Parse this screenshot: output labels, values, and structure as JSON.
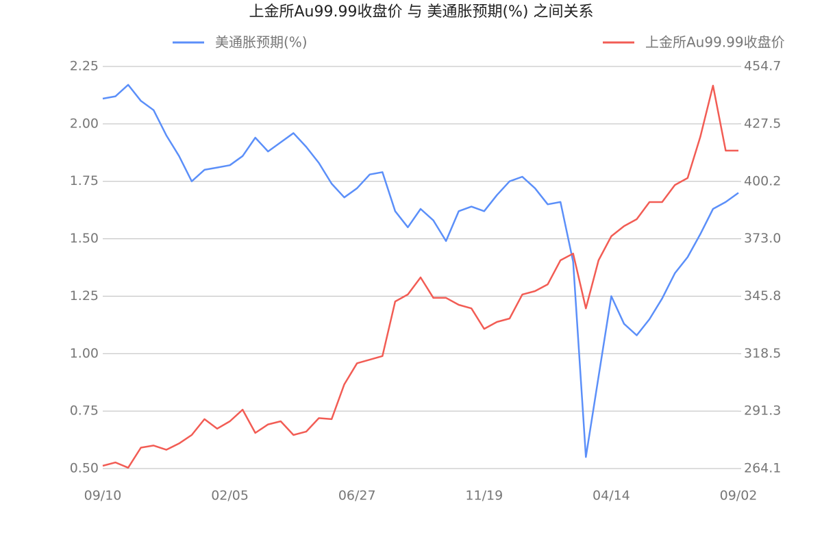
{
  "chart_data": {
    "type": "line",
    "title": "上金所Au99.99收盘价 与 美通胀预期(%) 之间关系",
    "categories": [
      "09/10",
      null,
      null,
      null,
      null,
      null,
      null,
      null,
      null,
      null,
      "02/05",
      null,
      null,
      null,
      null,
      null,
      null,
      null,
      null,
      null,
      "06/27",
      null,
      null,
      null,
      null,
      null,
      null,
      null,
      null,
      null,
      "11/19",
      null,
      null,
      null,
      null,
      null,
      null,
      null,
      null,
      null,
      "04/14",
      null,
      null,
      null,
      null,
      null,
      null,
      null,
      null,
      null,
      "09/02"
    ],
    "series": [
      {
        "name": "美通胀预期(%)",
        "color": "#5b8ff9",
        "axis": "y",
        "values": [
          2.11,
          2.12,
          2.17,
          2.1,
          2.06,
          1.95,
          1.86,
          1.75,
          1.8,
          1.81,
          1.82,
          1.86,
          1.94,
          1.88,
          1.92,
          1.96,
          1.9,
          1.83,
          1.74,
          1.68,
          1.72,
          1.78,
          1.79,
          1.62,
          1.55,
          1.63,
          1.58,
          1.49,
          1.62,
          1.64,
          1.62,
          1.69,
          1.75,
          1.77,
          1.72,
          1.65,
          1.66,
          1.4,
          0.55,
          0.9,
          1.25,
          1.13,
          1.08,
          1.15,
          1.24,
          1.35,
          1.42,
          1.52,
          1.63,
          1.66,
          1.7
        ]
      },
      {
        "name": "上金所Au99.99收盘价",
        "color": "#f25c54",
        "axis": "y2",
        "values": [
          265.4,
          267,
          264.5,
          274,
          275,
          273,
          276,
          280,
          287.5,
          283,
          286.5,
          292,
          281,
          285,
          286.5,
          280,
          281.6,
          288,
          287.5,
          304,
          314,
          315.7,
          317.4,
          343.3,
          346.6,
          354.7,
          345,
          345,
          341.7,
          340,
          330.3,
          333.6,
          335.2,
          346.6,
          348.2,
          351.4,
          362.8,
          366,
          340,
          362.8,
          374.2,
          379,
          382.3,
          390.4,
          390.4,
          398.5,
          401.8,
          421.3,
          445.6,
          414.8,
          414.8
        ]
      }
    ],
    "ylim": [
      0.5,
      2.25
    ],
    "yticks": [
      {
        "value": 0.5,
        "label": "0.50"
      },
      0.75,
      {
        "value": 1,
        "label": "1.00"
      },
      1.25,
      {
        "value": 1.5,
        "label": "1.50"
      },
      1.75,
      {
        "value": 2,
        "label": "2.00"
      },
      2.25
    ],
    "y2lim": [
      264.1,
      454.7
    ],
    "y2ticks": [
      264.1,
      291.3,
      318.5,
      345.8,
      {
        "value": 373,
        "label": "373.0"
      },
      400.2,
      427.5,
      454.7
    ],
    "grid": true
  }
}
